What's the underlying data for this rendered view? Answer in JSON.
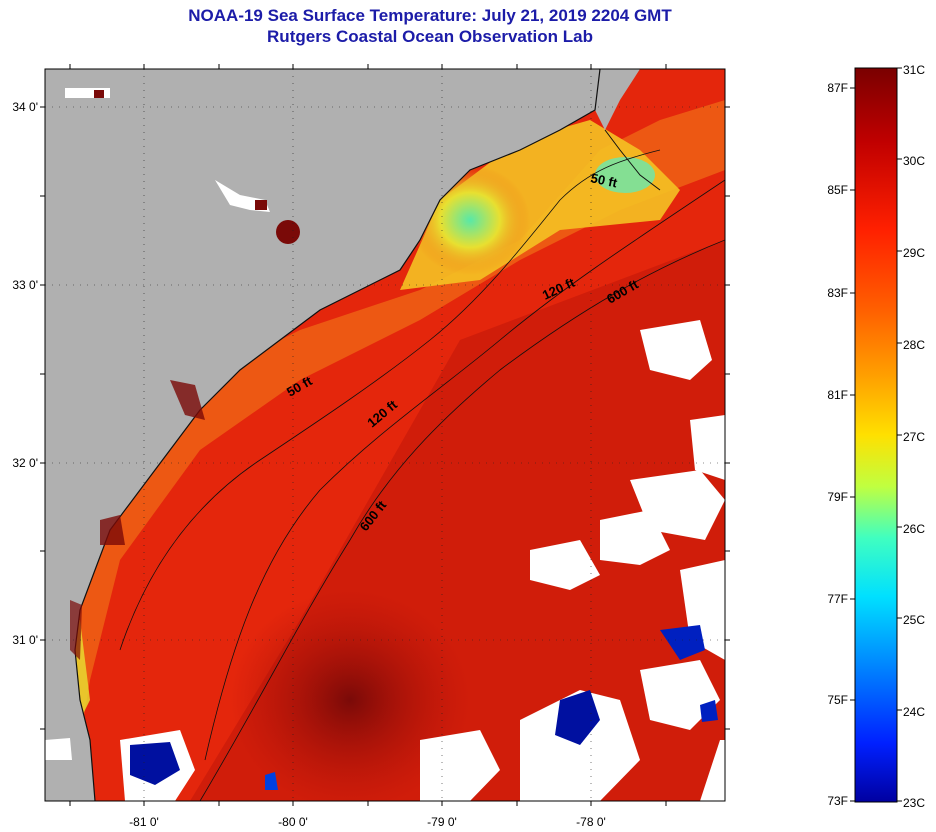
{
  "title": {
    "line1": "NOAA-19 Sea Surface Temperature:  July 21, 2019 2204 GMT",
    "line2": "Rutgers Coastal Ocean Observation Lab"
  },
  "map": {
    "lat_labels": [
      "34 0'",
      "33 0'",
      "32 0'",
      "31 0'"
    ],
    "lon_labels": [
      "-81 0'",
      "-80 0'",
      "-79 0'",
      "-78 0'"
    ],
    "contour_labels": [
      "50 ft",
      "120 ft",
      "600 ft",
      "50 ft",
      "120 ft",
      "600 ft"
    ],
    "colors": {
      "land": "#b0b0b0",
      "cloud": "#ffffff",
      "sst_warm": "#e8200a",
      "sst_hot": "#7a0a08",
      "sst_mid": "#f07818",
      "sst_cool": "#f8e028",
      "sst_cold": "#58e8a8"
    }
  },
  "colorbar": {
    "celsius_labels": [
      "31C",
      "30C",
      "29C",
      "28C",
      "27C",
      "26C",
      "25C",
      "24C",
      "23C"
    ],
    "fahrenheit_labels": [
      "87F",
      "85F",
      "83F",
      "81F",
      "79F",
      "77F",
      "75F",
      "73F"
    ],
    "gradient_stops": [
      "#800000",
      "#c00000",
      "#ff2000",
      "#ff6000",
      "#ffa000",
      "#ffe000",
      "#c0ff40",
      "#40ffc0",
      "#00e0ff",
      "#0080ff",
      "#0020ff",
      "#0000a0"
    ]
  }
}
